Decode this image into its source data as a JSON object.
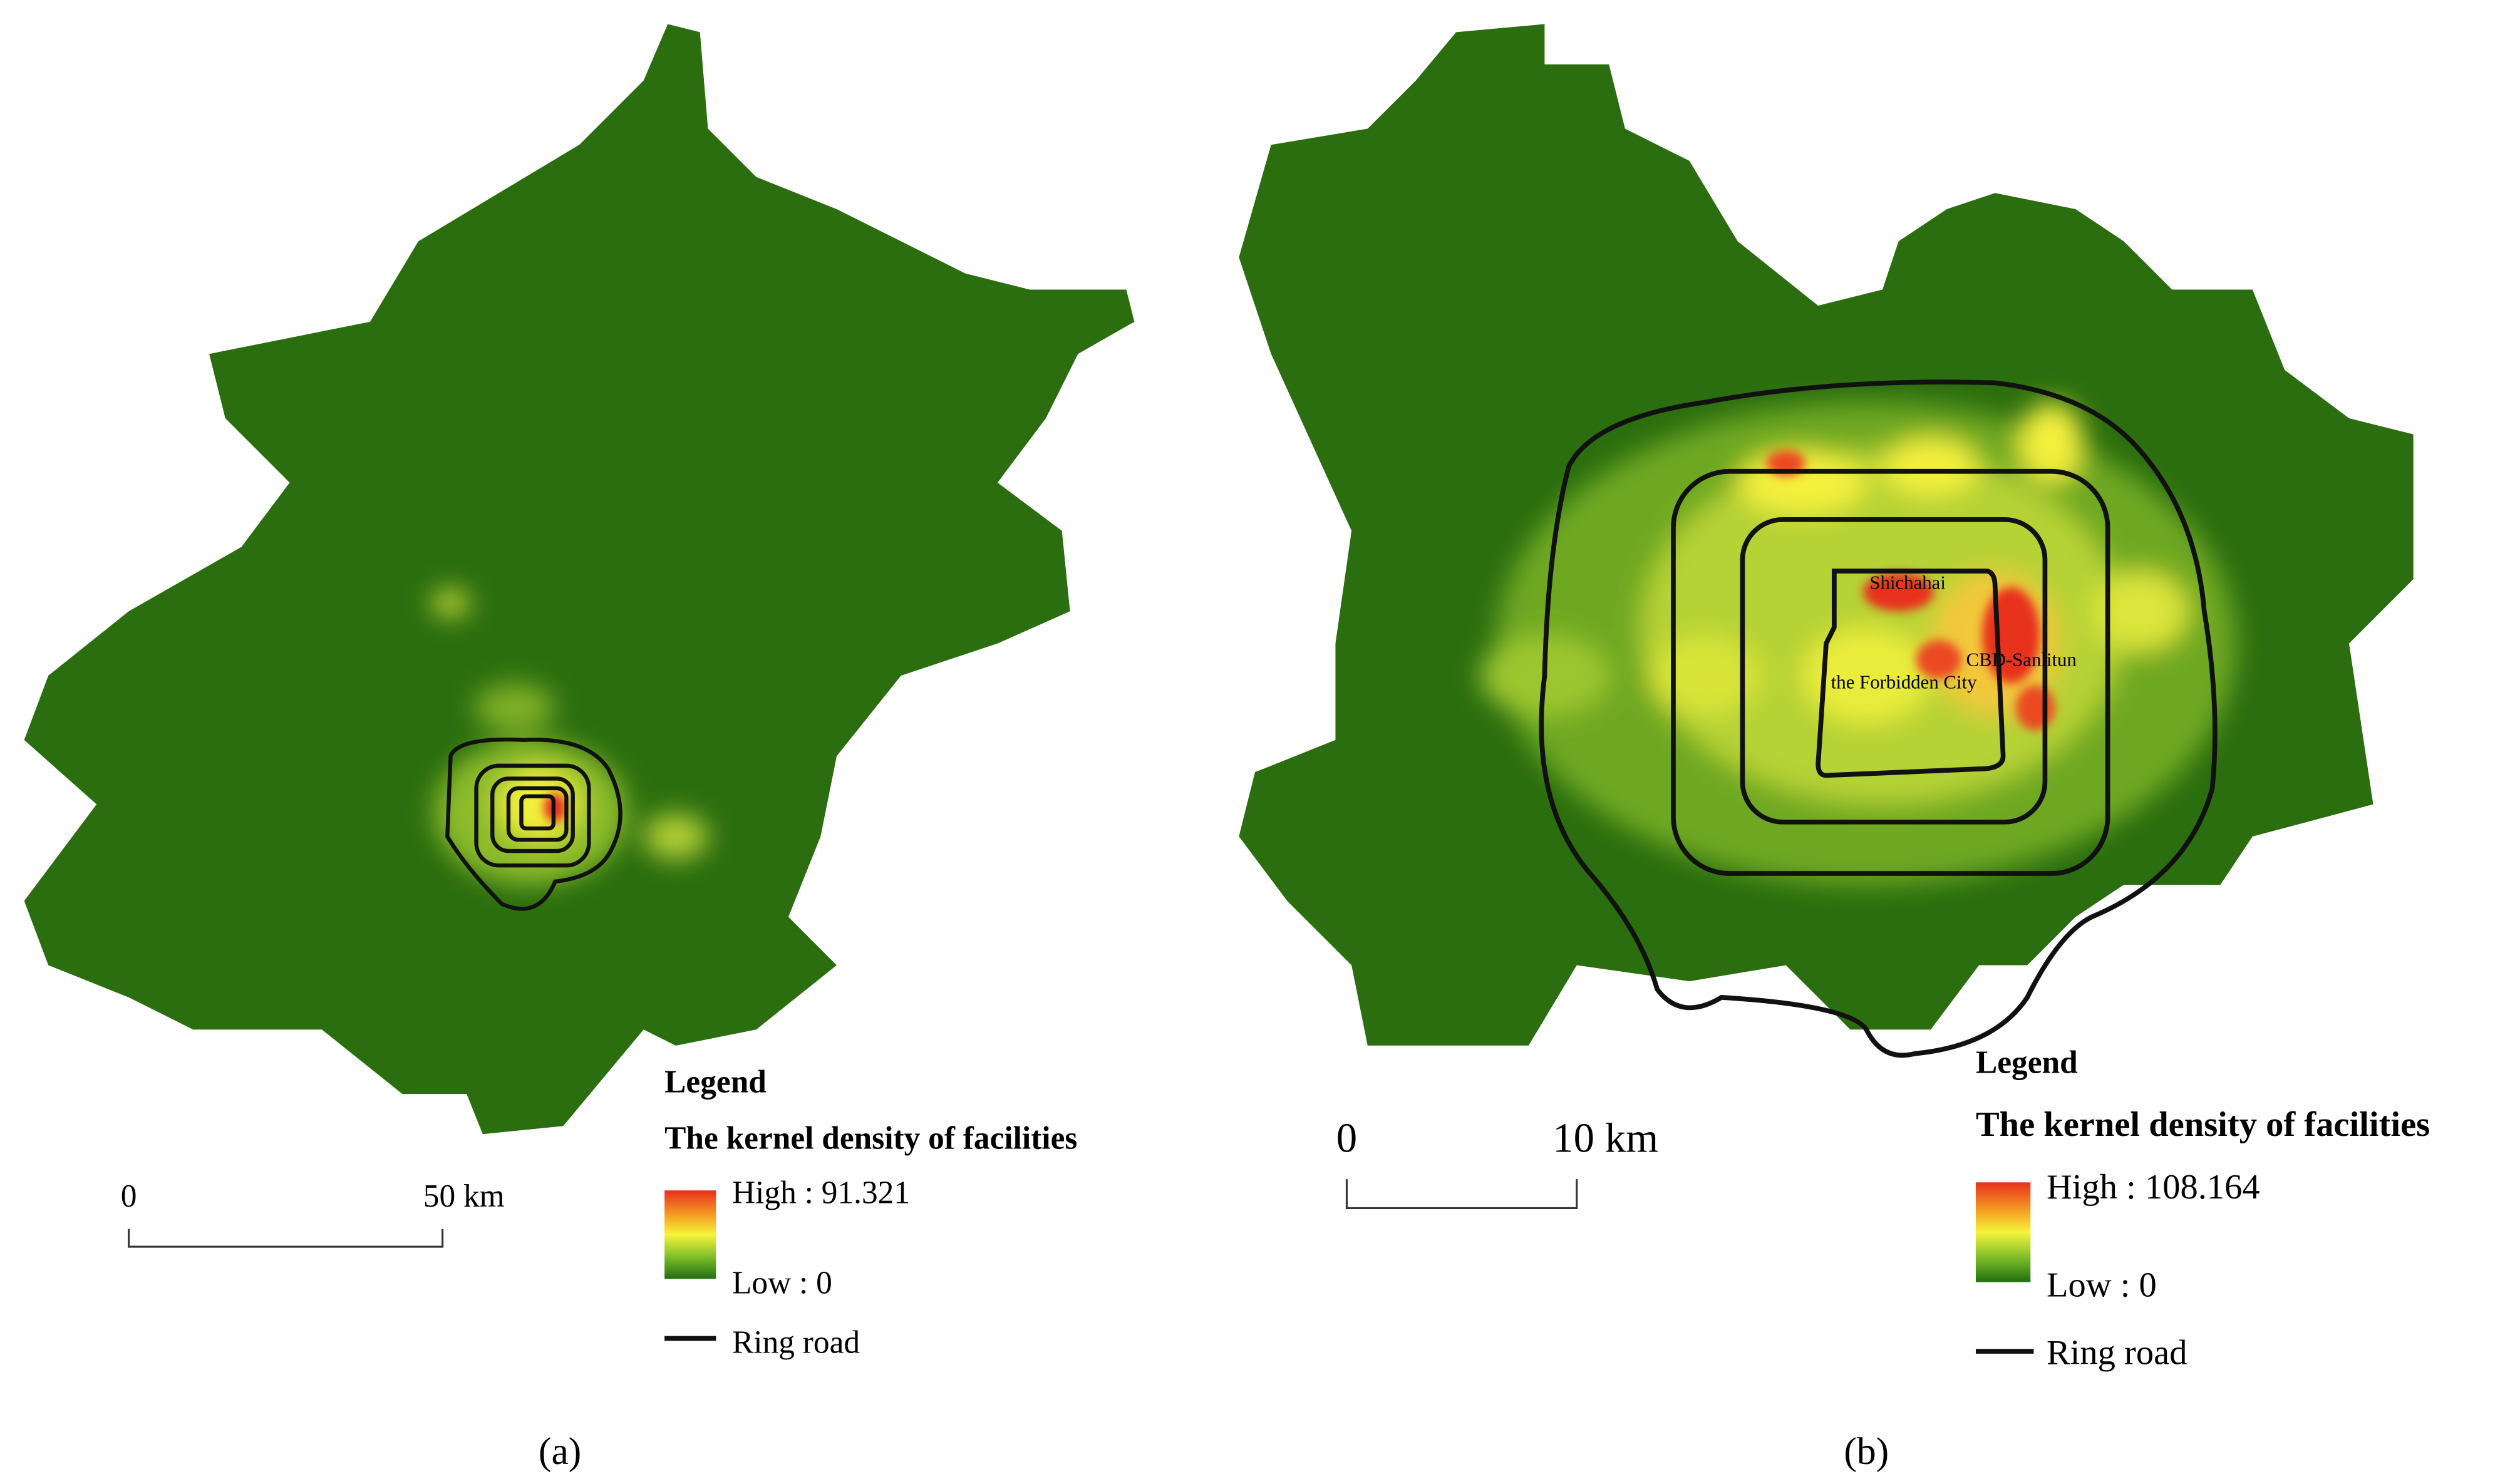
{
  "panels": [
    {
      "caption": "(a)",
      "legend": {
        "title": "Legend",
        "subtitle": "The kernel density of facilities",
        "high": "High : 91.321",
        "low": "Low : 0",
        "ring_road": "Ring road"
      },
      "scale_bar": {
        "start": "0",
        "end": "50 km"
      }
    },
    {
      "caption": "(b)",
      "legend": {
        "title": "Legend",
        "subtitle": "The kernel density of facilities",
        "high": "High : 108.164",
        "low": "Low : 0",
        "ring_road": "Ring road"
      },
      "scale_bar": {
        "start": "0",
        "end": "10 km"
      },
      "place_labels": [
        "Shichahai",
        "CBD-Sanlitun",
        "the Forbidden City"
      ]
    }
  ]
}
